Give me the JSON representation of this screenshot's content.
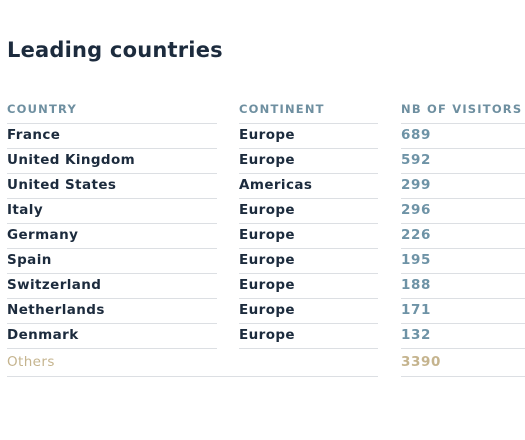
{
  "title": "Leading countries",
  "columns": {
    "country": "COUNTRY",
    "continent": "CONTINENT",
    "visitors": "NB OF VISITORS"
  },
  "rows": [
    {
      "country": "France",
      "continent": "Europe",
      "visitors": "689"
    },
    {
      "country": "United Kingdom",
      "continent": "Europe",
      "visitors": "592"
    },
    {
      "country": "United States",
      "continent": "Americas",
      "visitors": "299"
    },
    {
      "country": "Italy",
      "continent": "Europe",
      "visitors": "296"
    },
    {
      "country": "Germany",
      "continent": "Europe",
      "visitors": "226"
    },
    {
      "country": "Spain",
      "continent": "Europe",
      "visitors": "195"
    },
    {
      "country": "Switzerland",
      "continent": "Europe",
      "visitors": "188"
    },
    {
      "country": "Netherlands",
      "continent": "Europe",
      "visitors": "171"
    },
    {
      "country": "Denmark",
      "continent": "Europe",
      "visitors": "132"
    }
  ],
  "others": {
    "label": "Others",
    "visitors": "3390"
  },
  "colors": {
    "title": "#1c2b3d",
    "header": "#6e8fa0",
    "text": "#1c2b3d",
    "visitors": "#6e93a6",
    "others": "#c5b48e",
    "divider": "#dcdfe3"
  }
}
